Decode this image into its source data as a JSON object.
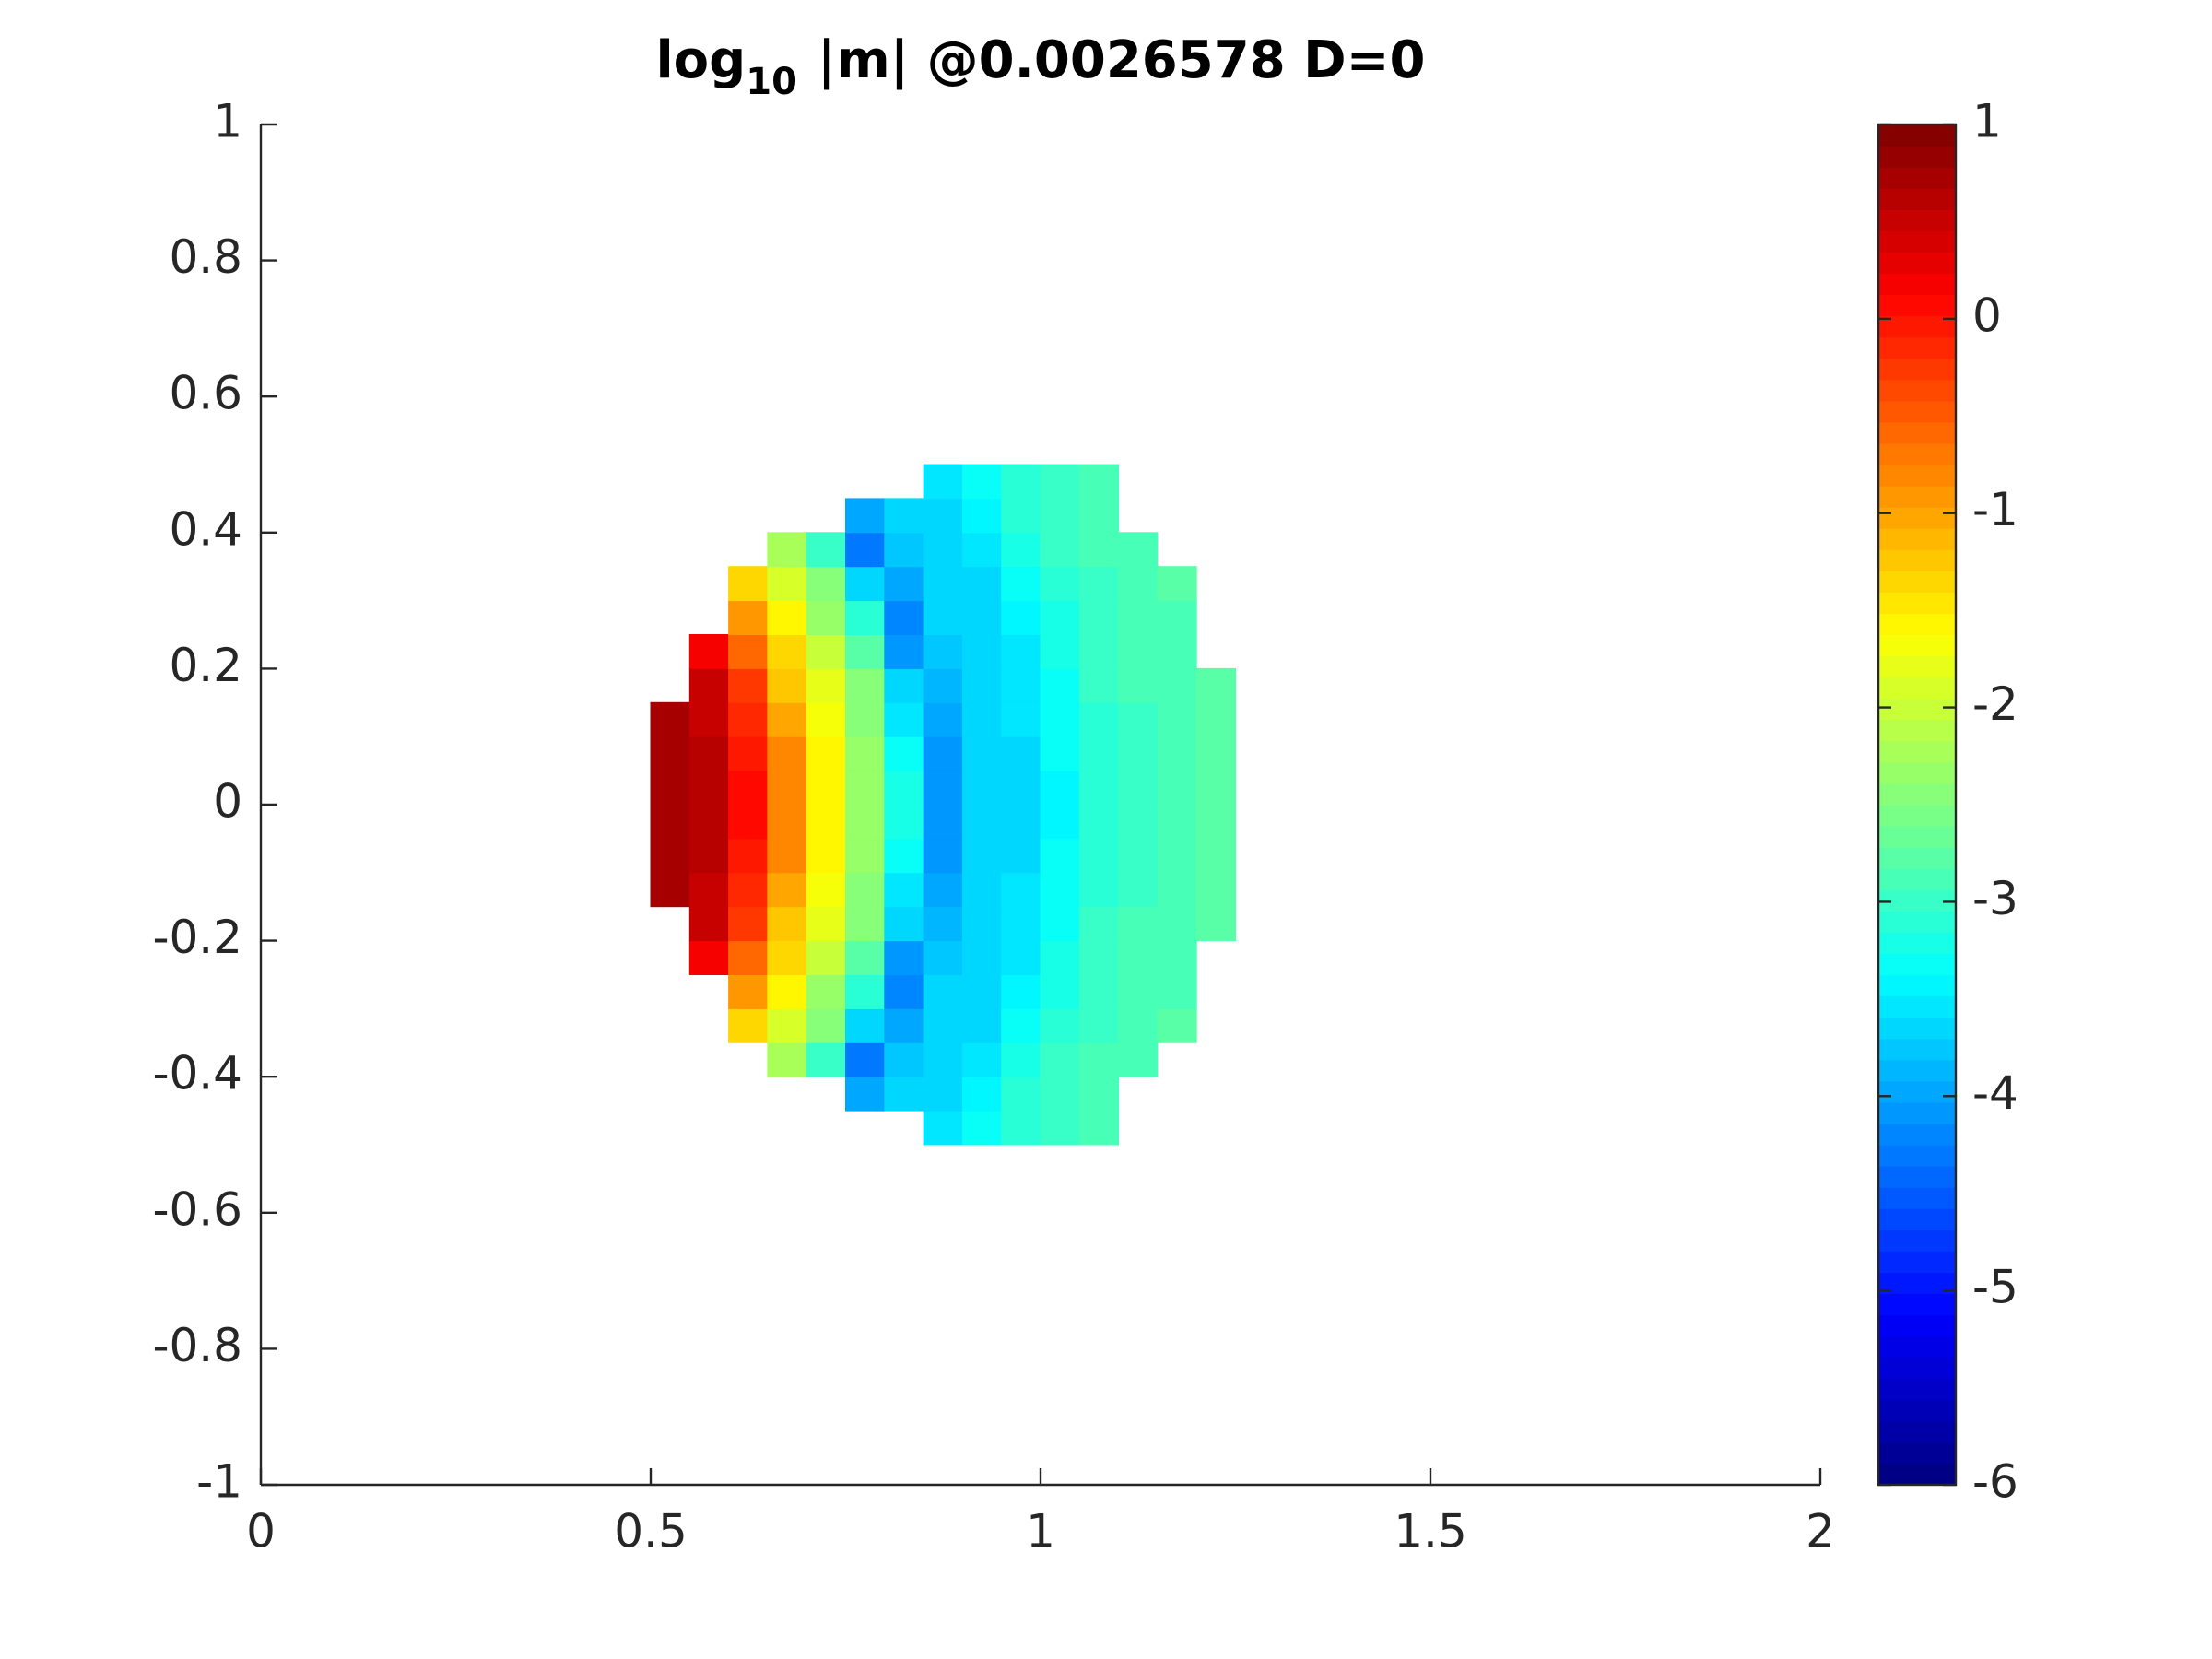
{
  "chart_data": {
    "type": "heatmap",
    "title": [
      "log",
      "10",
      "|m| @0.0026578 D=0"
    ],
    "colormap": "jet",
    "x": [
      0.525,
      0.575,
      0.625,
      0.675,
      0.725,
      0.775,
      0.825,
      0.875,
      0.925,
      0.975,
      1.025,
      1.075,
      1.125,
      1.175,
      1.225
    ],
    "y": [
      -0.475,
      -0.425,
      -0.375,
      -0.325,
      -0.275,
      -0.225,
      -0.175,
      -0.125,
      -0.075,
      -0.025,
      0.025,
      0.075,
      0.125,
      0.175,
      0.225,
      0.275,
      0.325,
      0.375,
      0.425,
      0.475
    ],
    "z": [
      [
        null,
        null,
        null,
        null,
        null,
        null,
        null,
        -3.5,
        -3.3,
        -3.1,
        -3.0,
        -2.9,
        null,
        null,
        null
      ],
      [
        null,
        null,
        null,
        null,
        null,
        -4.0,
        -3.7,
        -3.6,
        -3.4,
        -3.1,
        -3.0,
        -2.9,
        null,
        null,
        null
      ],
      [
        null,
        null,
        null,
        -2.2,
        -3.0,
        -4.3,
        -3.8,
        -3.7,
        -3.5,
        -3.2,
        -3.0,
        -2.9,
        -2.9,
        null,
        null
      ],
      [
        null,
        null,
        -1.3,
        -1.9,
        -2.5,
        -3.6,
        -4.0,
        -3.7,
        -3.6,
        -3.3,
        -3.1,
        -3.0,
        -2.9,
        -2.8,
        null
      ],
      [
        null,
        null,
        -0.9,
        -1.6,
        -2.3,
        -3.1,
        -4.2,
        -3.7,
        -3.6,
        -3.4,
        -3.2,
        -3.0,
        -2.9,
        -2.9,
        null
      ],
      [
        null,
        0.2,
        -0.6,
        -1.4,
        -2.0,
        -2.8,
        -4.1,
        -3.8,
        -3.7,
        -3.5,
        -3.2,
        -3.0,
        -2.9,
        -2.9,
        null
      ],
      [
        null,
        0.5,
        -0.3,
        -1.2,
        -1.8,
        -2.5,
        -3.7,
        -3.9,
        -3.7,
        -3.5,
        -3.3,
        -3.0,
        -2.9,
        -2.9,
        -2.8
      ],
      [
        0.7,
        0.5,
        -0.1,
        -1.0,
        -1.7,
        -2.4,
        -3.5,
        -4.0,
        -3.7,
        -3.5,
        -3.3,
        -3.1,
        -3.0,
        -2.9,
        -2.8
      ],
      [
        0.7,
        0.6,
        0.0,
        -0.8,
        -1.6,
        -2.3,
        -3.3,
        -4.1,
        -3.7,
        -3.6,
        -3.3,
        -3.1,
        -3.0,
        -2.9,
        -2.8
      ],
      [
        0.7,
        0.6,
        0.1,
        -0.8,
        -1.6,
        -2.3,
        -3.2,
        -4.1,
        -3.7,
        -3.6,
        -3.4,
        -3.1,
        -3.0,
        -2.9,
        -2.8
      ],
      [
        0.7,
        0.6,
        0.1,
        -0.8,
        -1.6,
        -2.3,
        -3.2,
        -4.1,
        -3.7,
        -3.6,
        -3.4,
        -3.1,
        -3.0,
        -2.9,
        -2.8
      ],
      [
        0.7,
        0.6,
        0.0,
        -0.8,
        -1.6,
        -2.3,
        -3.3,
        -4.1,
        -3.7,
        -3.6,
        -3.3,
        -3.1,
        -3.0,
        -2.9,
        -2.8
      ],
      [
        0.7,
        0.5,
        -0.1,
        -1.0,
        -1.7,
        -2.4,
        -3.5,
        -4.0,
        -3.7,
        -3.5,
        -3.3,
        -3.1,
        -3.0,
        -2.9,
        -2.8
      ],
      [
        null,
        0.5,
        -0.3,
        -1.2,
        -1.8,
        -2.5,
        -3.7,
        -3.9,
        -3.7,
        -3.5,
        -3.3,
        -3.0,
        -2.9,
        -2.9,
        -2.8
      ],
      [
        null,
        0.2,
        -0.6,
        -1.4,
        -2.0,
        -2.8,
        -4.1,
        -3.8,
        -3.7,
        -3.5,
        -3.2,
        -3.0,
        -2.9,
        -2.9,
        null
      ],
      [
        null,
        null,
        -0.9,
        -1.6,
        -2.3,
        -3.1,
        -4.2,
        -3.7,
        -3.6,
        -3.4,
        -3.2,
        -3.0,
        -2.9,
        -2.9,
        null
      ],
      [
        null,
        null,
        -1.3,
        -1.9,
        -2.5,
        -3.6,
        -4.0,
        -3.7,
        -3.6,
        -3.3,
        -3.1,
        -3.0,
        -2.9,
        -2.8,
        null
      ],
      [
        null,
        null,
        null,
        -2.2,
        -3.0,
        -4.3,
        -3.8,
        -3.7,
        -3.5,
        -3.2,
        -3.0,
        -2.9,
        -2.9,
        null,
        null
      ],
      [
        null,
        null,
        null,
        null,
        null,
        -4.0,
        -3.7,
        -3.6,
        -3.4,
        -3.1,
        -3.0,
        -2.9,
        null,
        null,
        null
      ],
      [
        null,
        null,
        null,
        null,
        null,
        null,
        null,
        -3.5,
        -3.3,
        -3.1,
        -3.0,
        -2.9,
        null,
        null,
        null
      ]
    ],
    "xlim": [
      0,
      2
    ],
    "xticks": [
      0,
      0.5,
      1,
      1.5,
      2
    ],
    "ylim": [
      -1,
      1
    ],
    "yticks": [
      -1,
      -0.8,
      -0.6,
      -0.4,
      -0.2,
      0,
      0.2,
      0.4,
      0.6,
      0.8,
      1
    ],
    "colorbar": {
      "lim": [
        -6,
        1
      ],
      "ticks": [
        -6,
        -5,
        -4,
        -3,
        -2,
        -1,
        0,
        1
      ]
    }
  }
}
